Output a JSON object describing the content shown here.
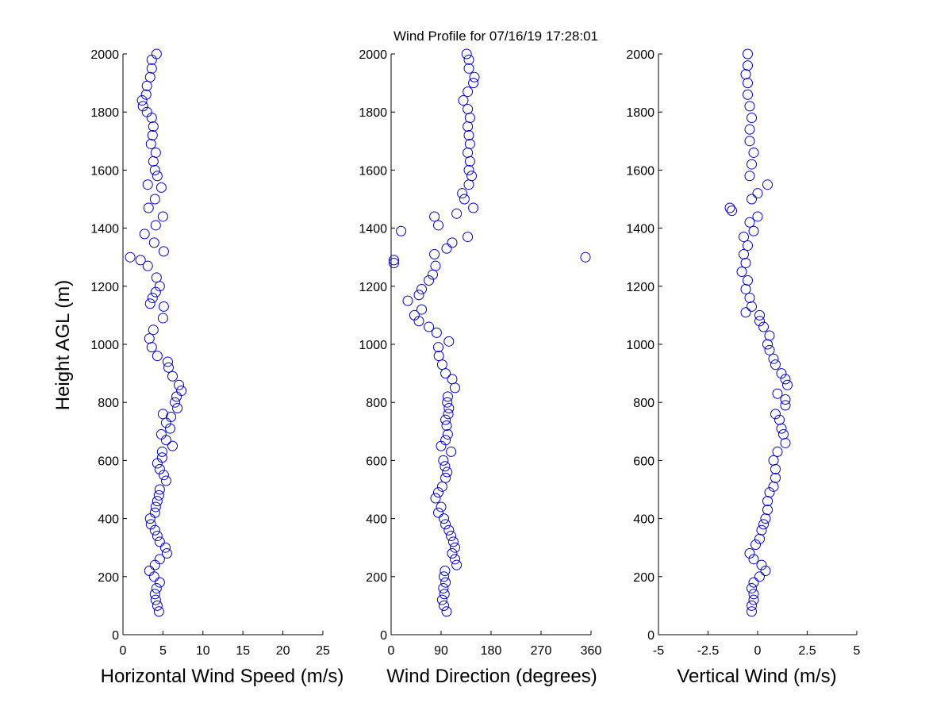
{
  "chart_data": {
    "title": "Wind Profile for  07/16/19 17:28:01",
    "ylabel": "Height AGL (m)",
    "panels": [
      {
        "type": "scatter",
        "xlabel": "Horizontal Wind Speed (m/s)",
        "xlim": [
          0,
          25
        ],
        "ylim": [
          0,
          2000
        ],
        "xticks": [
          0,
          5,
          10,
          15,
          20,
          25
        ],
        "xtick_labels": [
          "0",
          "5",
          "10",
          "15",
          "20",
          "25"
        ],
        "yticks": [
          0,
          200,
          400,
          600,
          800,
          1000,
          1200,
          1400,
          1600,
          1800,
          2000
        ],
        "points": [
          [
            4.5,
            80
          ],
          [
            4.3,
            100
          ],
          [
            4.1,
            120
          ],
          [
            4.0,
            140
          ],
          [
            4.2,
            160
          ],
          [
            4.6,
            180
          ],
          [
            3.9,
            200
          ],
          [
            3.3,
            220
          ],
          [
            4.0,
            240
          ],
          [
            4.6,
            260
          ],
          [
            5.5,
            280
          ],
          [
            5.3,
            300
          ],
          [
            4.6,
            320
          ],
          [
            4.3,
            340
          ],
          [
            4.0,
            360
          ],
          [
            3.5,
            380
          ],
          [
            3.4,
            400
          ],
          [
            4.0,
            420
          ],
          [
            4.1,
            440
          ],
          [
            4.3,
            460
          ],
          [
            4.5,
            480
          ],
          [
            4.6,
            500
          ],
          [
            5.4,
            530
          ],
          [
            5.1,
            550
          ],
          [
            4.6,
            570
          ],
          [
            4.3,
            590
          ],
          [
            4.9,
            610
          ],
          [
            4.9,
            630
          ],
          [
            6.2,
            650
          ],
          [
            5.4,
            670
          ],
          [
            4.8,
            690
          ],
          [
            5.9,
            710
          ],
          [
            5.4,
            730
          ],
          [
            6.0,
            750
          ],
          [
            5.0,
            760
          ],
          [
            6.8,
            780
          ],
          [
            6.5,
            800
          ],
          [
            6.7,
            820
          ],
          [
            7.3,
            840
          ],
          [
            7.0,
            860
          ],
          [
            6.2,
            890
          ],
          [
            5.7,
            920
          ],
          [
            5.6,
            940
          ],
          [
            4.3,
            960
          ],
          [
            3.6,
            990
          ],
          [
            3.3,
            1020
          ],
          [
            3.8,
            1050
          ],
          [
            5.0,
            1090
          ],
          [
            5.1,
            1130
          ],
          [
            3.4,
            1140
          ],
          [
            3.7,
            1160
          ],
          [
            4.1,
            1180
          ],
          [
            4.6,
            1200
          ],
          [
            4.2,
            1230
          ],
          [
            3.1,
            1270
          ],
          [
            2.2,
            1290
          ],
          [
            0.9,
            1300
          ],
          [
            5.1,
            1320
          ],
          [
            3.9,
            1350
          ],
          [
            2.7,
            1380
          ],
          [
            4.1,
            1410
          ],
          [
            5.0,
            1440
          ],
          [
            3.2,
            1470
          ],
          [
            4.0,
            1500
          ],
          [
            4.8,
            1540
          ],
          [
            3.1,
            1550
          ],
          [
            4.3,
            1580
          ],
          [
            4.0,
            1600
          ],
          [
            3.8,
            1630
          ],
          [
            4.1,
            1660
          ],
          [
            3.5,
            1690
          ],
          [
            3.7,
            1720
          ],
          [
            3.8,
            1750
          ],
          [
            3.6,
            1780
          ],
          [
            3.0,
            1800
          ],
          [
            2.5,
            1820
          ],
          [
            2.4,
            1840
          ],
          [
            2.9,
            1860
          ],
          [
            3.0,
            1890
          ],
          [
            3.4,
            1920
          ],
          [
            3.6,
            1950
          ],
          [
            3.6,
            1980
          ],
          [
            4.2,
            2000
          ]
        ]
      },
      {
        "type": "scatter",
        "xlabel": "Wind Direction (degrees)",
        "xlim": [
          0,
          360
        ],
        "ylim": [
          0,
          2000
        ],
        "xticks": [
          0,
          90,
          180,
          270,
          360
        ],
        "xtick_labels": [
          "0",
          "90",
          "180",
          "270",
          "360"
        ],
        "yticks": [
          0,
          200,
          400,
          600,
          800,
          1000,
          1200,
          1400,
          1600,
          1800,
          2000
        ],
        "points": [
          [
            100,
            80
          ],
          [
            95,
            100
          ],
          [
            92,
            120
          ],
          [
            96,
            140
          ],
          [
            94,
            160
          ],
          [
            98,
            180
          ],
          [
            95,
            200
          ],
          [
            97,
            220
          ],
          [
            118,
            240
          ],
          [
            115,
            260
          ],
          [
            110,
            280
          ],
          [
            115,
            300
          ],
          [
            112,
            320
          ],
          [
            108,
            340
          ],
          [
            104,
            360
          ],
          [
            98,
            380
          ],
          [
            95,
            400
          ],
          [
            85,
            420
          ],
          [
            90,
            440
          ],
          [
            80,
            470
          ],
          [
            85,
            490
          ],
          [
            92,
            510
          ],
          [
            98,
            540
          ],
          [
            101,
            560
          ],
          [
            97,
            580
          ],
          [
            94,
            600
          ],
          [
            108,
            630
          ],
          [
            90,
            650
          ],
          [
            98,
            670
          ],
          [
            102,
            690
          ],
          [
            100,
            720
          ],
          [
            98,
            740
          ],
          [
            103,
            760
          ],
          [
            104,
            780
          ],
          [
            101,
            800
          ],
          [
            102,
            820
          ],
          [
            115,
            850
          ],
          [
            110,
            880
          ],
          [
            98,
            900
          ],
          [
            92,
            930
          ],
          [
            86,
            960
          ],
          [
            85,
            990
          ],
          [
            104,
            1010
          ],
          [
            82,
            1040
          ],
          [
            68,
            1060
          ],
          [
            50,
            1080
          ],
          [
            42,
            1100
          ],
          [
            55,
            1120
          ],
          [
            30,
            1150
          ],
          [
            50,
            1170
          ],
          [
            55,
            1190
          ],
          [
            68,
            1220
          ],
          [
            75,
            1240
          ],
          [
            80,
            1270
          ],
          [
            5,
            1280
          ],
          [
            5,
            1290
          ],
          [
            350,
            1300
          ],
          [
            78,
            1310
          ],
          [
            100,
            1330
          ],
          [
            110,
            1350
          ],
          [
            138,
            1370
          ],
          [
            18,
            1390
          ],
          [
            85,
            1410
          ],
          [
            78,
            1440
          ],
          [
            118,
            1450
          ],
          [
            148,
            1470
          ],
          [
            132,
            1500
          ],
          [
            128,
            1520
          ],
          [
            140,
            1550
          ],
          [
            145,
            1580
          ],
          [
            140,
            1600
          ],
          [
            142,
            1630
          ],
          [
            138,
            1660
          ],
          [
            142,
            1690
          ],
          [
            140,
            1720
          ],
          [
            138,
            1750
          ],
          [
            142,
            1780
          ],
          [
            138,
            1810
          ],
          [
            130,
            1840
          ],
          [
            138,
            1870
          ],
          [
            148,
            1900
          ],
          [
            150,
            1920
          ],
          [
            140,
            1950
          ],
          [
            140,
            1980
          ],
          [
            136,
            2000
          ]
        ]
      },
      {
        "type": "scatter",
        "xlabel": "Vertical Wind (m/s)",
        "xlim": [
          -5,
          5
        ],
        "ylim": [
          0,
          2000
        ],
        "xticks": [
          -5,
          -2.5,
          0,
          2.5,
          5
        ],
        "xtick_labels": [
          "-5",
          "-2.5",
          "0",
          "2.5",
          "5"
        ],
        "yticks": [
          0,
          200,
          400,
          600,
          800,
          1000,
          1200,
          1400,
          1600,
          1800,
          2000
        ],
        "points": [
          [
            -0.3,
            80
          ],
          [
            -0.3,
            100
          ],
          [
            -0.2,
            120
          ],
          [
            -0.2,
            140
          ],
          [
            -0.3,
            160
          ],
          [
            -0.2,
            180
          ],
          [
            0.1,
            200
          ],
          [
            0.4,
            220
          ],
          [
            0.2,
            240
          ],
          [
            -0.2,
            260
          ],
          [
            -0.4,
            280
          ],
          [
            -0.1,
            310
          ],
          [
            0.1,
            330
          ],
          [
            0.2,
            360
          ],
          [
            0.3,
            380
          ],
          [
            0.4,
            400
          ],
          [
            0.5,
            430
          ],
          [
            0.5,
            460
          ],
          [
            0.6,
            490
          ],
          [
            0.8,
            510
          ],
          [
            0.9,
            540
          ],
          [
            0.9,
            570
          ],
          [
            0.8,
            600
          ],
          [
            1.0,
            630
          ],
          [
            1.4,
            660
          ],
          [
            1.3,
            690
          ],
          [
            1.2,
            710
          ],
          [
            1.1,
            740
          ],
          [
            0.9,
            760
          ],
          [
            1.4,
            790
          ],
          [
            1.4,
            810
          ],
          [
            1.0,
            830
          ],
          [
            1.5,
            860
          ],
          [
            1.4,
            880
          ],
          [
            1.2,
            900
          ],
          [
            0.9,
            930
          ],
          [
            0.8,
            950
          ],
          [
            0.6,
            980
          ],
          [
            0.5,
            1000
          ],
          [
            0.6,
            1030
          ],
          [
            0.3,
            1060
          ],
          [
            0.1,
            1080
          ],
          [
            0.1,
            1100
          ],
          [
            -0.6,
            1110
          ],
          [
            -0.3,
            1130
          ],
          [
            -0.4,
            1160
          ],
          [
            -0.6,
            1190
          ],
          [
            -0.5,
            1220
          ],
          [
            -0.8,
            1250
          ],
          [
            -0.6,
            1280
          ],
          [
            -0.7,
            1310
          ],
          [
            -0.5,
            1340
          ],
          [
            -0.7,
            1370
          ],
          [
            -0.2,
            1390
          ],
          [
            -0.4,
            1420
          ],
          [
            0.0,
            1440
          ],
          [
            -1.3,
            1460
          ],
          [
            -1.4,
            1470
          ],
          [
            -0.3,
            1500
          ],
          [
            0.0,
            1520
          ],
          [
            0.5,
            1550
          ],
          [
            -0.4,
            1580
          ],
          [
            -0.3,
            1620
          ],
          [
            -0.2,
            1660
          ],
          [
            -0.4,
            1700
          ],
          [
            -0.4,
            1740
          ],
          [
            -0.3,
            1780
          ],
          [
            -0.4,
            1820
          ],
          [
            -0.5,
            1860
          ],
          [
            -0.5,
            1900
          ],
          [
            -0.6,
            1930
          ],
          [
            -0.5,
            1960
          ],
          [
            -0.5,
            2000
          ]
        ]
      }
    ]
  }
}
